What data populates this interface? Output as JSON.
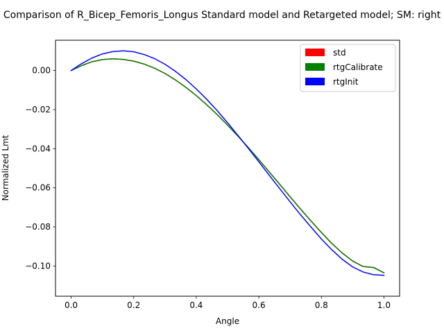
{
  "chart_data": {
    "type": "line",
    "title": "Comparison of R_Bicep_Femoris_Longus Standard model and Retargeted model; SM: right",
    "xlabel": "Angle",
    "ylabel": "Normalized Lmt",
    "xlim": [
      -0.05,
      1.05
    ],
    "ylim": [
      -0.1155,
      0.0155
    ],
    "xticks": [
      0.0,
      0.2,
      0.4,
      0.6,
      0.8,
      1.0
    ],
    "xtick_labels": [
      "0.0",
      "0.2",
      "0.4",
      "0.6",
      "0.8",
      "1.0"
    ],
    "yticks": [
      0.0,
      -0.02,
      -0.04,
      -0.06,
      -0.08,
      -0.1
    ],
    "ytick_labels": [
      "0.00",
      "−0.02",
      "−0.04",
      "−0.06",
      "−0.08",
      "−0.10"
    ],
    "grid": false,
    "legend_position": "top-right",
    "x": [
      0.0,
      0.0333,
      0.0667,
      0.1,
      0.1333,
      0.1667,
      0.2,
      0.2333,
      0.2667,
      0.3,
      0.3333,
      0.3667,
      0.4,
      0.4333,
      0.4667,
      0.5,
      0.5333,
      0.5667,
      0.6,
      0.6333,
      0.6667,
      0.7,
      0.7333,
      0.7667,
      0.8,
      0.8333,
      0.8667,
      0.9,
      0.9333,
      0.9667,
      1.0
    ],
    "series": [
      {
        "name": "std",
        "color": "#ff0000",
        "values": [
          0.0,
          0.0025,
          0.0045,
          0.0056,
          0.006,
          0.0057,
          0.0048,
          0.0033,
          0.0012,
          -0.0015,
          -0.0048,
          -0.0086,
          -0.0128,
          -0.0175,
          -0.0225,
          -0.0279,
          -0.0336,
          -0.0395,
          -0.0456,
          -0.0519,
          -0.0582,
          -0.0646,
          -0.0709,
          -0.077,
          -0.0829,
          -0.0885,
          -0.0934,
          -0.0975,
          -0.1003,
          -0.1008,
          -0.1035
        ]
      },
      {
        "name": "rtgCalibrate",
        "color": "#008000",
        "values": [
          0.0,
          0.0025,
          0.0045,
          0.0056,
          0.006,
          0.0057,
          0.0048,
          0.0033,
          0.0012,
          -0.0015,
          -0.0048,
          -0.0086,
          -0.0128,
          -0.0175,
          -0.0225,
          -0.0279,
          -0.0336,
          -0.0395,
          -0.0456,
          -0.0519,
          -0.0582,
          -0.0646,
          -0.0709,
          -0.077,
          -0.0829,
          -0.0885,
          -0.0934,
          -0.0975,
          -0.1003,
          -0.1008,
          -0.1035
        ]
      },
      {
        "name": "rtgInit",
        "color": "#0000ff",
        "values": [
          0.0,
          0.0035,
          0.0064,
          0.0085,
          0.0097,
          0.0101,
          0.0096,
          0.0082,
          0.0061,
          0.0032,
          -0.0004,
          -0.0046,
          -0.0094,
          -0.0147,
          -0.0205,
          -0.0267,
          -0.0332,
          -0.0399,
          -0.0467,
          -0.0536,
          -0.0604,
          -0.0672,
          -0.0738,
          -0.0801,
          -0.0862,
          -0.0917,
          -0.0966,
          -0.1005,
          -0.1031,
          -0.1045,
          -0.1048
        ]
      }
    ],
    "line_width": 1.5
  }
}
